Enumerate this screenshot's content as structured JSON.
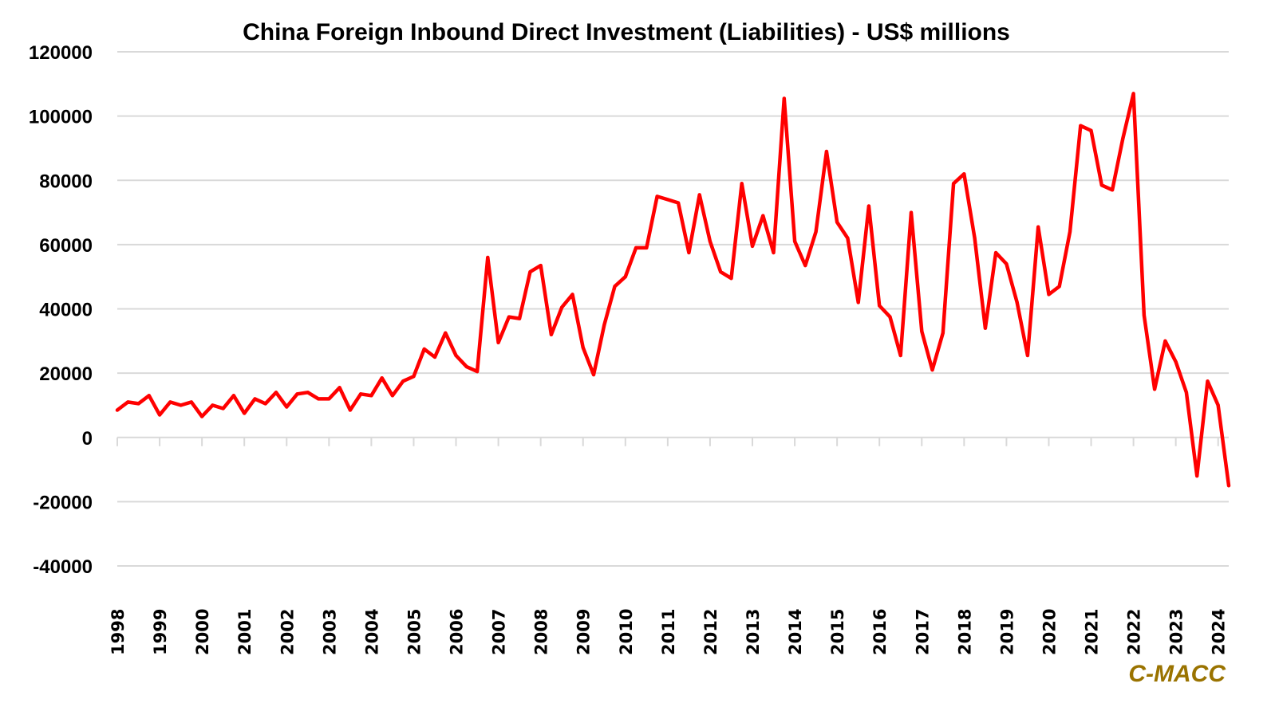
{
  "chart_data": {
    "type": "line",
    "title": "China Foreign Inbound Direct Investment (Liabilities) - US$ millions",
    "xlabel": "",
    "ylabel": "",
    "ylim": [
      -40000,
      120000
    ],
    "yticks": [
      120000,
      100000,
      80000,
      60000,
      40000,
      20000,
      0,
      -20000,
      -40000
    ],
    "ytick_labels": [
      "120000",
      "100000",
      "80000",
      "60000",
      "40000",
      "20000",
      "0",
      "-20000",
      "-40000"
    ],
    "xtick_labels": [
      "1998",
      "1999",
      "2000",
      "2001",
      "2002",
      "2003",
      "2004",
      "2005",
      "2006",
      "2007",
      "2008",
      "2009",
      "2010",
      "2011",
      "2012",
      "2013",
      "2014",
      "2015",
      "2016",
      "2017",
      "2018",
      "2019",
      "2020",
      "2021",
      "2022",
      "2023",
      "2024"
    ],
    "x_frequency": "quarterly",
    "x_start": "1998 Q1",
    "grid": true,
    "legend": "none",
    "series": [
      {
        "name": "China Foreign Inbound Direct Investment (Liabilities)",
        "color": "#ff0000",
        "values": [
          8500,
          11000,
          10500,
          13000,
          7000,
          11000,
          10000,
          11000,
          6500,
          10000,
          9000,
          13000,
          7500,
          12000,
          10500,
          14000,
          9500,
          13500,
          14000,
          12000,
          12000,
          15500,
          8500,
          13500,
          13000,
          18500,
          13000,
          17500,
          19000,
          27500,
          25000,
          32500,
          25500,
          22000,
          20500,
          56000,
          29500,
          37500,
          37000,
          51500,
          53500,
          32000,
          40500,
          44500,
          28000,
          19500,
          35000,
          47000,
          50000,
          59000,
          59000,
          75000,
          74000,
          73000,
          57500,
          75500,
          61000,
          51500,
          49500,
          79000,
          59500,
          69000,
          57500,
          105500,
          61000,
          53500,
          64000,
          89000,
          67000,
          62000,
          42000,
          72000,
          41000,
          37500,
          25500,
          70000,
          33000,
          21000,
          32500,
          79000,
          82000,
          62000,
          34000,
          57500,
          54000,
          42000,
          25500,
          65500,
          44500,
          47000,
          64000,
          97000,
          95500,
          78500,
          77000,
          93000,
          107000,
          38000,
          15000,
          30000,
          23500,
          14000,
          -12000,
          17500,
          10000,
          -15000
        ]
      }
    ]
  },
  "watermark": {
    "text": "C-MACC",
    "color": "#9a7300"
  },
  "colors": {
    "grid": "#d9d9d9",
    "text": "#000000"
  }
}
